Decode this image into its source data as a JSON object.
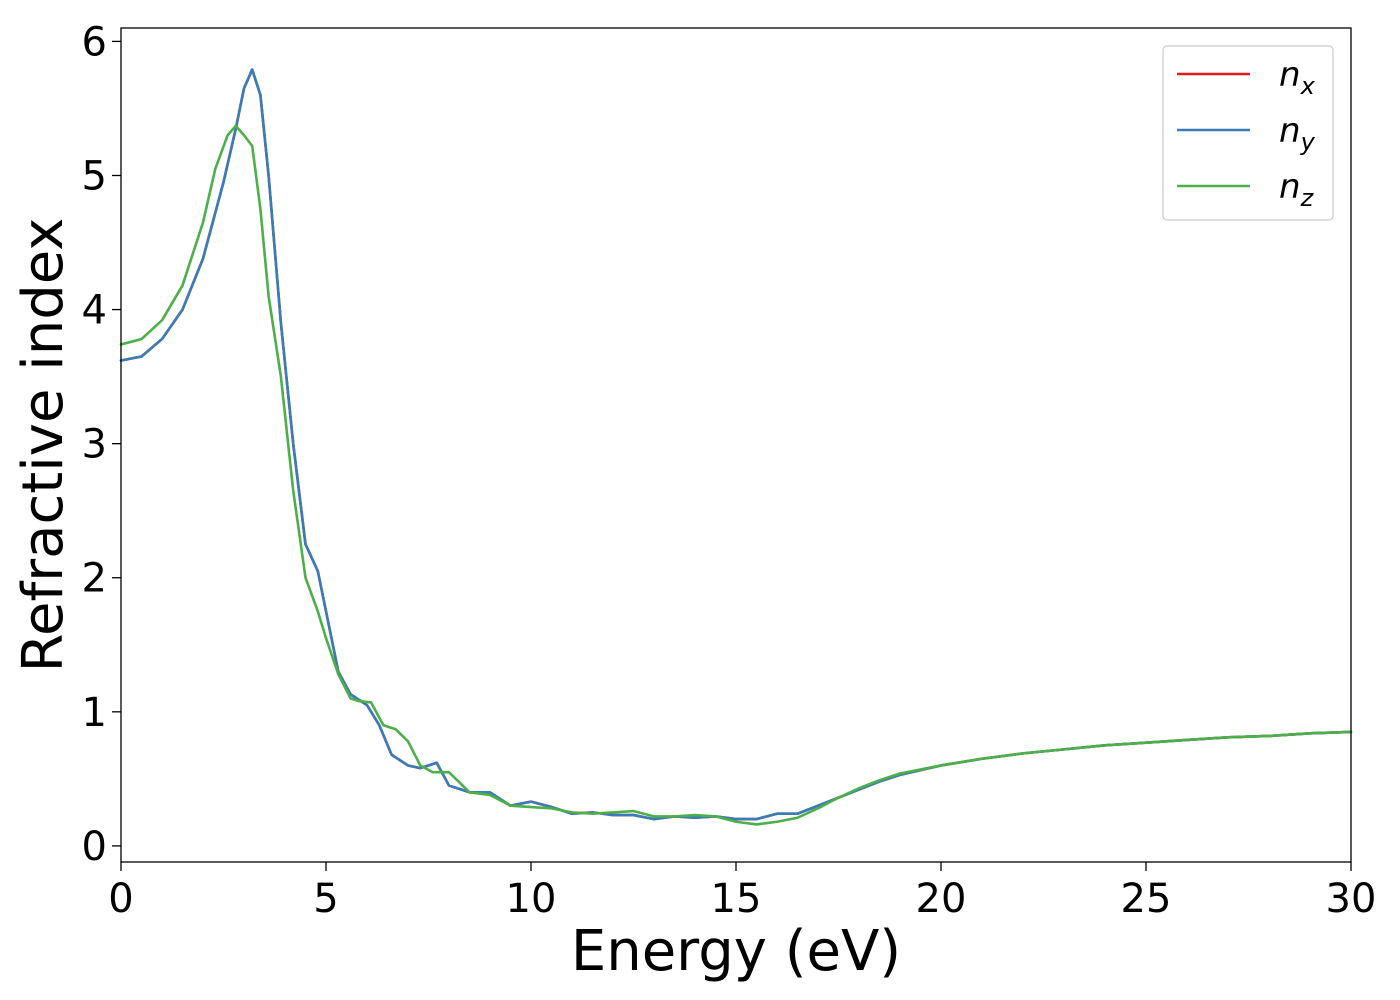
{
  "chart_data": {
    "type": "line",
    "xlabel": "Energy (eV)",
    "ylabel": "Refractive index",
    "xlim": [
      0,
      30
    ],
    "ylim": [
      -0.12,
      6.1
    ],
    "xticks": [
      "0",
      "5",
      "10",
      "15",
      "20",
      "25",
      "30"
    ],
    "yticks": [
      "0",
      "1",
      "2",
      "3",
      "4",
      "5",
      "6"
    ],
    "grid": false,
    "legend_position": "top-right",
    "series": [
      {
        "name": "n_x",
        "label_base": "n",
        "label_sub": "x",
        "color": "#e41a1c",
        "x": [
          0,
          0.5,
          1.0,
          1.5,
          2.0,
          2.5,
          2.8,
          3.0,
          3.2,
          3.4,
          3.6,
          3.9,
          4.2,
          4.5,
          4.8,
          5.0,
          5.3,
          5.6,
          6.0,
          6.3,
          6.6,
          7.0,
          7.3,
          7.7,
          8.0,
          8.5,
          9.0,
          9.5,
          10.0,
          10.5,
          11.0,
          11.5,
          12.0,
          12.5,
          13.0,
          13.5,
          14.0,
          14.5,
          15.0,
          15.5,
          16.0,
          16.5,
          17.0,
          17.5,
          18.0,
          18.5,
          19.0,
          20.0,
          21.0,
          22.0,
          23.0,
          24.0,
          25.0,
          26.0,
          27.0,
          28.0,
          29.0,
          30.0
        ],
        "y": [
          3.62,
          3.65,
          3.78,
          4.0,
          4.38,
          4.95,
          5.35,
          5.65,
          5.79,
          5.6,
          5.0,
          3.9,
          3.0,
          2.25,
          2.05,
          1.75,
          1.3,
          1.13,
          1.05,
          0.9,
          0.68,
          0.6,
          0.58,
          0.62,
          0.45,
          0.4,
          0.4,
          0.3,
          0.33,
          0.29,
          0.24,
          0.25,
          0.23,
          0.23,
          0.2,
          0.22,
          0.21,
          0.22,
          0.2,
          0.2,
          0.24,
          0.24,
          0.3,
          0.36,
          0.42,
          0.48,
          0.53,
          0.6,
          0.65,
          0.69,
          0.72,
          0.75,
          0.77,
          0.79,
          0.81,
          0.82,
          0.84,
          0.85
        ]
      },
      {
        "name": "n_y",
        "label_base": "n",
        "label_sub": "y",
        "color": "#377eb8",
        "x": [
          0,
          0.5,
          1.0,
          1.5,
          2.0,
          2.5,
          2.8,
          3.0,
          3.2,
          3.4,
          3.6,
          3.9,
          4.2,
          4.5,
          4.8,
          5.0,
          5.3,
          5.6,
          6.0,
          6.3,
          6.6,
          7.0,
          7.3,
          7.7,
          8.0,
          8.5,
          9.0,
          9.5,
          10.0,
          10.5,
          11.0,
          11.5,
          12.0,
          12.5,
          13.0,
          13.5,
          14.0,
          14.5,
          15.0,
          15.5,
          16.0,
          16.5,
          17.0,
          17.5,
          18.0,
          18.5,
          19.0,
          20.0,
          21.0,
          22.0,
          23.0,
          24.0,
          25.0,
          26.0,
          27.0,
          28.0,
          29.0,
          30.0
        ],
        "y": [
          3.62,
          3.65,
          3.78,
          4.0,
          4.38,
          4.95,
          5.35,
          5.65,
          5.79,
          5.6,
          5.0,
          3.9,
          3.0,
          2.25,
          2.05,
          1.75,
          1.3,
          1.13,
          1.05,
          0.9,
          0.68,
          0.6,
          0.58,
          0.62,
          0.45,
          0.4,
          0.4,
          0.3,
          0.33,
          0.29,
          0.24,
          0.25,
          0.23,
          0.23,
          0.2,
          0.22,
          0.21,
          0.22,
          0.2,
          0.2,
          0.24,
          0.24,
          0.3,
          0.36,
          0.42,
          0.48,
          0.53,
          0.6,
          0.65,
          0.69,
          0.72,
          0.75,
          0.77,
          0.79,
          0.81,
          0.82,
          0.84,
          0.85
        ]
      },
      {
        "name": "n_z",
        "label_base": "n",
        "label_sub": "z",
        "color": "#4daf4a",
        "x": [
          0,
          0.5,
          1.0,
          1.5,
          2.0,
          2.3,
          2.6,
          2.8,
          3.0,
          3.2,
          3.4,
          3.6,
          3.9,
          4.2,
          4.5,
          4.8,
          5.0,
          5.3,
          5.6,
          5.8,
          6.1,
          6.4,
          6.7,
          7.0,
          7.3,
          7.6,
          8.0,
          8.5,
          9.0,
          9.5,
          10.0,
          10.5,
          11.0,
          11.5,
          12.0,
          12.5,
          13.0,
          13.5,
          14.0,
          14.5,
          15.0,
          15.5,
          16.0,
          16.5,
          17.0,
          17.5,
          18.0,
          18.5,
          19.0,
          20.0,
          21.0,
          22.0,
          23.0,
          24.0,
          25.0,
          26.0,
          27.0,
          28.0,
          29.0,
          30.0
        ],
        "y": [
          3.74,
          3.78,
          3.92,
          4.18,
          4.65,
          5.05,
          5.3,
          5.37,
          5.3,
          5.22,
          4.75,
          4.1,
          3.5,
          2.65,
          2.0,
          1.75,
          1.55,
          1.28,
          1.1,
          1.08,
          1.07,
          0.9,
          0.87,
          0.78,
          0.6,
          0.55,
          0.55,
          0.4,
          0.38,
          0.3,
          0.29,
          0.28,
          0.25,
          0.24,
          0.25,
          0.26,
          0.22,
          0.22,
          0.23,
          0.22,
          0.18,
          0.16,
          0.18,
          0.21,
          0.28,
          0.36,
          0.43,
          0.49,
          0.54,
          0.6,
          0.65,
          0.69,
          0.72,
          0.75,
          0.77,
          0.79,
          0.81,
          0.82,
          0.84,
          0.85
        ]
      }
    ]
  }
}
